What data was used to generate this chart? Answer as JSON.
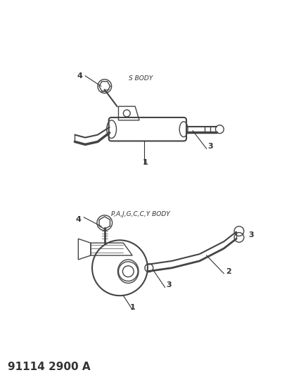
{
  "title": "91114 2900 A",
  "title_fontsize": 11,
  "title_weight": "bold",
  "background_color": "#ffffff",
  "line_color": "#444444",
  "text_color": "#333333",
  "label_fontsize": 7,
  "subtitle1": "P,A,J,G,C,C,Y BODY",
  "subtitle2": "S BODY",
  "fig_width": 4.01,
  "fig_height": 5.33,
  "dpi": 100
}
